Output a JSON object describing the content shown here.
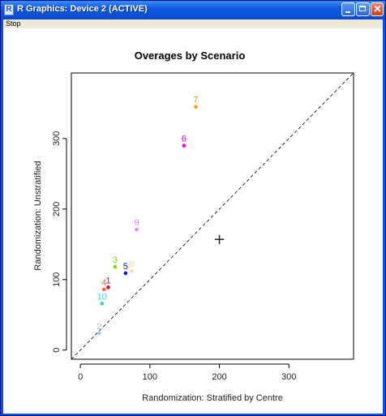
{
  "window": {
    "title": "R Graphics: Device 2 (ACTIVE)",
    "menu": {
      "stop_label": "Stop"
    },
    "titlebar_color": "#0a50d8"
  },
  "chart_data": {
    "type": "scatter",
    "title": "Overages by Scenario",
    "xlabel": "Randomization: Stratified by Centre",
    "ylabel": "Randomization: Unstratified",
    "xlim": [
      -13,
      393
    ],
    "ylim": [
      -13,
      393
    ],
    "x_ticks": [
      0,
      100,
      200,
      300
    ],
    "y_ticks": [
      0,
      100,
      200,
      300
    ],
    "reference_line": "y = x (dashed)",
    "center_marker": {
      "x": 200,
      "y": 157,
      "symbol": "+"
    },
    "points": [
      {
        "label": "1",
        "x": 40,
        "y": 89,
        "color": "#e8001c"
      },
      {
        "label": "2",
        "x": 27,
        "y": 24,
        "color": "#9ecae1"
      },
      {
        "label": "3",
        "x": 50,
        "y": 118,
        "color": "#7fdc00"
      },
      {
        "label": "4",
        "x": 34,
        "y": 86,
        "color": "#f26050"
      },
      {
        "label": "5",
        "x": 65,
        "y": 109,
        "color": "#1010d0"
      },
      {
        "label": "6",
        "x": 149,
        "y": 290,
        "color": "#ee00ee"
      },
      {
        "label": "7",
        "x": 166,
        "y": 345,
        "color": "#f0a000"
      },
      {
        "label": "8",
        "x": 74,
        "y": 112,
        "color": "#f7d9a0"
      },
      {
        "label": "9",
        "x": 81,
        "y": 171,
        "color": "#e68ae6"
      },
      {
        "label": "10",
        "x": 31,
        "y": 66,
        "color": "#3ad6c0"
      }
    ]
  }
}
